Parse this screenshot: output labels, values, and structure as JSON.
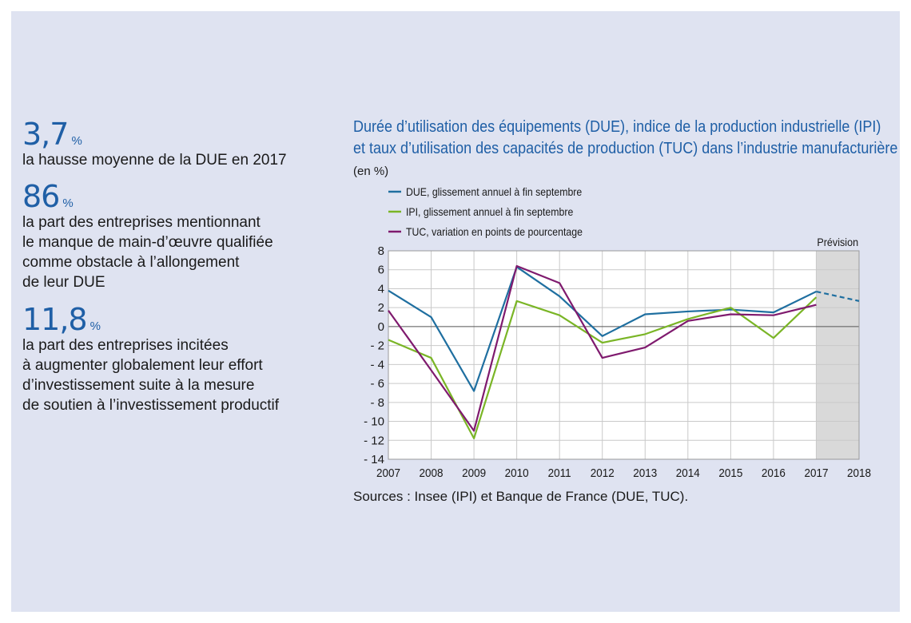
{
  "stats": [
    {
      "value": "3,7",
      "unit": "%",
      "lines": [
        "la hausse moyenne de la DUE en 2017"
      ]
    },
    {
      "value": "86",
      "unit": "%",
      "lines": [
        "la part des entreprises mentionnant",
        "le manque de main-d’œuvre qualifiée",
        "comme obstacle à l’allongement",
        "de leur DUE"
      ]
    },
    {
      "value": "11,8",
      "unit": "%",
      "lines": [
        "la part des entreprises incitées",
        "à augmenter globalement leur effort",
        "d’investissement suite à la mesure",
        "de soutien à l’investissement productif"
      ]
    }
  ],
  "chart_data": {
    "type": "line",
    "title_lines": [
      "Durée d’utilisation des équipements (DUE), indice de la production industrielle (IPI)",
      "et taux d’utilisation des capacités de production (TUC) dans l’industrie manufacturière"
    ],
    "unit_label": "(en %)",
    "x": [
      2007,
      2008,
      2009,
      2010,
      2011,
      2012,
      2013,
      2014,
      2015,
      2016,
      2017,
      2018
    ],
    "ylim": [
      -14,
      8
    ],
    "yticks": [
      8,
      6,
      4,
      2,
      0,
      -2,
      -4,
      -6,
      -8,
      -10,
      -12,
      -14
    ],
    "ytick_labels": [
      "8",
      "6",
      "4",
      "2",
      "0",
      "- 2",
      "- 4",
      "- 6",
      "- 8",
      "- 10",
      "- 12",
      "- 14"
    ],
    "forecast_label": "Prévision",
    "forecast_start": 2017,
    "legend_position": "top-left",
    "series": [
      {
        "name": "DUE, glissement annuel à fin septembre",
        "color": "#1f6fa0",
        "x": [
          2007,
          2008,
          2009,
          2010,
          2011,
          2012,
          2013,
          2014,
          2015,
          2016,
          2017
        ],
        "values": [
          3.8,
          1.0,
          -6.8,
          6.3,
          3.2,
          -1.0,
          1.3,
          1.6,
          1.8,
          1.5,
          3.7
        ],
        "forecast": {
          "x": [
            2017,
            2018
          ],
          "values": [
            3.7,
            2.7
          ]
        }
      },
      {
        "name": "IPI, glissement annuel à fin septembre",
        "color": "#7ab526",
        "x": [
          2007,
          2008,
          2009,
          2010,
          2011,
          2012,
          2013,
          2014,
          2015,
          2016,
          2017
        ],
        "values": [
          -1.4,
          -3.3,
          -11.8,
          2.7,
          1.2,
          -1.7,
          -0.8,
          0.8,
          2.0,
          -1.2,
          3.1
        ]
      },
      {
        "name": "TUC, variation en points de pourcentage",
        "color": "#7f1a6e",
        "x": [
          2007,
          2008,
          2009,
          2010,
          2011,
          2012,
          2013,
          2014,
          2015,
          2016,
          2017
        ],
        "values": [
          1.7,
          -4.6,
          -11.0,
          6.4,
          4.6,
          -3.3,
          -2.2,
          0.6,
          1.3,
          1.2,
          2.3
        ]
      }
    ],
    "source": "Sources : Insee (IPI) et Banque de France (DUE, TUC)."
  }
}
